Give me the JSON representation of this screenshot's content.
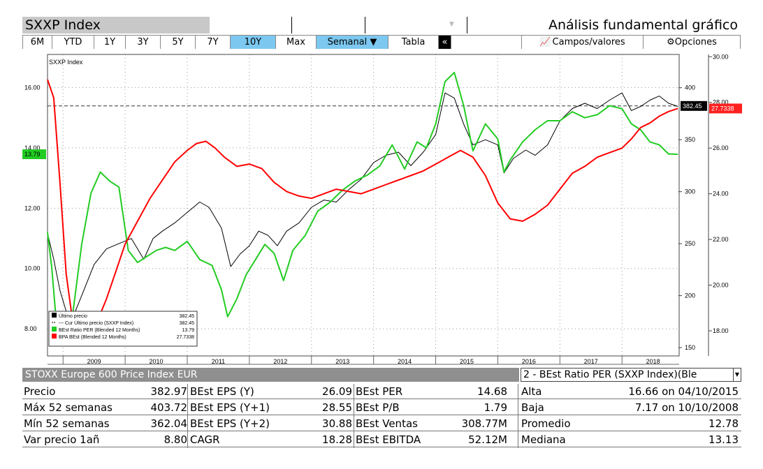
{
  "header": {
    "ticker": "SXXP Index",
    "title": "Análisis fundamental gráfico"
  },
  "toolbar": {
    "periods": [
      "6M",
      "YTD",
      "1Y",
      "3Y",
      "5Y",
      "7Y",
      "10Y",
      "Max"
    ],
    "selected_period": "10Y",
    "frequency": "Semanal ▼",
    "tabla": "Tabla",
    "collapse": "«",
    "campos": "Campos/valores",
    "opciones": "Opciones"
  },
  "chart_data": {
    "type": "line",
    "title": "SXXP Index",
    "x_labels": [
      "2009",
      "2010",
      "2011",
      "2012",
      "2013",
      "2014",
      "2015",
      "2016",
      "2017",
      "2018"
    ],
    "x_range": [
      2008.75,
      2018.92
    ],
    "left_axis": {
      "ticks": [
        "8.00",
        "10.00",
        "12.00",
        "14.00",
        "16.00"
      ],
      "range": [
        7.1,
        17.1
      ]
    },
    "mid_axis": {
      "ticks": [
        "150",
        "200",
        "250",
        "300",
        "350",
        "400"
      ],
      "range": [
        142,
        432
      ]
    },
    "right_axis": {
      "ticks": [
        "18.00",
        "20.00",
        "22.00",
        "24.00",
        "26.00",
        "28.00",
        "30.00"
      ],
      "range": [
        16.9,
        30.1
      ]
    },
    "reference_line": 382.45,
    "grid": true,
    "legend_position": "bottom-left",
    "legend": [
      {
        "label": "Último precio",
        "value": "382.45",
        "color": "#000000"
      },
      {
        "label": "--- Cur Último precio (SXXP Index)",
        "value": "382.45",
        "color": "#000000"
      },
      {
        "label": "BEst Ratio PER (Blended 12 Months)",
        "value": "13.79",
        "color": "#22cc22"
      },
      {
        "label": "BPA BEst (Blended 12 Months)",
        "value": "27.7338",
        "color": "#ff0000"
      }
    ],
    "value_tags": {
      "per": "13.79",
      "price": "382.45",
      "eps": "27.7338"
    },
    "series": [
      {
        "name": "Último precio",
        "axis": "mid",
        "color": "#000000",
        "x": [
          2008.75,
          2008.85,
          2008.95,
          2009.05,
          2009.15,
          2009.3,
          2009.5,
          2009.7,
          2009.9,
          2010.1,
          2010.3,
          2010.45,
          2010.6,
          2010.8,
          2011.0,
          2011.2,
          2011.35,
          2011.55,
          2011.7,
          2011.85,
          2012.0,
          2012.15,
          2012.3,
          2012.45,
          2012.6,
          2012.8,
          2013.0,
          2013.2,
          2013.4,
          2013.6,
          2013.8,
          2014.0,
          2014.2,
          2014.4,
          2014.6,
          2014.8,
          2015.0,
          2015.15,
          2015.3,
          2015.45,
          2015.6,
          2015.8,
          2016.0,
          2016.1,
          2016.25,
          2016.45,
          2016.6,
          2016.8,
          2017.0,
          2017.2,
          2017.4,
          2017.6,
          2017.8,
          2018.0,
          2018.15,
          2018.3,
          2018.45,
          2018.6,
          2018.75,
          2018.9
        ],
        "y": [
          260,
          235,
          205,
          185,
          178,
          200,
          230,
          245,
          250,
          255,
          235,
          255,
          262,
          270,
          280,
          290,
          285,
          265,
          228,
          240,
          248,
          262,
          258,
          248,
          262,
          270,
          285,
          292,
          290,
          302,
          312,
          328,
          335,
          338,
          325,
          338,
          355,
          395,
          390,
          365,
          345,
          350,
          345,
          318,
          332,
          340,
          335,
          345,
          368,
          380,
          385,
          380,
          388,
          395,
          378,
          382,
          388,
          392,
          385,
          382
        ]
      },
      {
        "name": "BEst Ratio PER (Blended 12 Months)",
        "axis": "left",
        "color": "#22cc22",
        "x": [
          2008.75,
          2008.82,
          2008.88,
          2008.95,
          2009.05,
          2009.15,
          2009.3,
          2009.45,
          2009.6,
          2009.75,
          2009.9,
          2010.05,
          2010.2,
          2010.35,
          2010.5,
          2010.65,
          2010.8,
          2011.0,
          2011.2,
          2011.4,
          2011.55,
          2011.65,
          2011.8,
          2011.95,
          2012.1,
          2012.25,
          2012.4,
          2012.55,
          2012.7,
          2012.9,
          2013.1,
          2013.3,
          2013.5,
          2013.7,
          2013.9,
          2014.1,
          2014.3,
          2014.5,
          2014.7,
          2014.85,
          2015.0,
          2015.15,
          2015.3,
          2015.45,
          2015.6,
          2015.8,
          2016.0,
          2016.1,
          2016.2,
          2016.4,
          2016.6,
          2016.8,
          2017.0,
          2017.2,
          2017.4,
          2017.6,
          2017.8,
          2018.0,
          2018.15,
          2018.3,
          2018.45,
          2018.6,
          2018.75,
          2018.9
        ],
        "y": [
          11.2,
          10.0,
          8.5,
          7.8,
          7.6,
          8.4,
          10.8,
          12.5,
          13.2,
          12.9,
          12.7,
          10.6,
          10.2,
          10.4,
          10.6,
          10.7,
          10.6,
          10.9,
          10.3,
          10.1,
          9.3,
          8.4,
          9.0,
          9.8,
          10.3,
          10.8,
          10.5,
          9.6,
          10.6,
          11.1,
          11.9,
          12.2,
          12.6,
          12.9,
          13.1,
          13.4,
          14.1,
          13.3,
          14.2,
          14.0,
          14.8,
          16.2,
          16.5,
          15.4,
          13.9,
          14.8,
          14.3,
          13.2,
          13.6,
          14.2,
          14.6,
          14.9,
          14.9,
          15.2,
          15.0,
          15.1,
          15.4,
          15.3,
          14.8,
          14.6,
          14.2,
          14.1,
          13.8,
          13.79
        ]
      },
      {
        "name": "BPA BEst (Blended 12 Months)",
        "axis": "right",
        "color": "#ff0000",
        "x": [
          2008.75,
          2008.85,
          2008.95,
          2009.05,
          2009.15,
          2009.25,
          2009.4,
          2009.55,
          2009.7,
          2009.85,
          2010.0,
          2010.2,
          2010.4,
          2010.6,
          2010.8,
          2011.0,
          2011.15,
          2011.3,
          2011.45,
          2011.6,
          2011.8,
          2012.0,
          2012.2,
          2012.4,
          2012.6,
          2012.8,
          2013.0,
          2013.2,
          2013.4,
          2013.6,
          2013.8,
          2014.0,
          2014.2,
          2014.4,
          2014.6,
          2014.8,
          2015.0,
          2015.2,
          2015.4,
          2015.6,
          2015.8,
          2016.0,
          2016.2,
          2016.4,
          2016.6,
          2016.8,
          2017.0,
          2017.2,
          2017.4,
          2017.6,
          2017.8,
          2018.0,
          2018.15,
          2018.3,
          2018.45,
          2018.6,
          2018.75,
          2018.9
        ],
        "y": [
          29.0,
          28.2,
          24.5,
          20.5,
          18.5,
          17.4,
          17.6,
          18.4,
          19.4,
          20.6,
          21.8,
          22.8,
          23.8,
          24.6,
          25.4,
          25.9,
          26.2,
          26.3,
          26.0,
          25.6,
          25.2,
          25.3,
          25.1,
          24.5,
          24.1,
          23.9,
          23.8,
          24.0,
          24.2,
          24.1,
          24.0,
          24.2,
          24.4,
          24.6,
          24.8,
          25.0,
          25.3,
          25.6,
          25.9,
          25.6,
          24.8,
          23.6,
          22.9,
          22.8,
          23.1,
          23.5,
          24.2,
          24.9,
          25.2,
          25.6,
          25.8,
          26.0,
          26.4,
          26.9,
          27.1,
          27.4,
          27.6,
          27.7338
        ]
      }
    ]
  },
  "info": {
    "title": "STOXX Europe 600 Price Index EUR",
    "selector": "2 - BEst Ratio PER (SXXP Index)(Ble",
    "rows": [
      {
        "c1": "Precio",
        "v1": "382.97",
        "c2": "BEst EPS (Y)",
        "v2": "26.09",
        "c3": "BEst PER",
        "v3": "14.68",
        "c4": "Alta",
        "v4": "16.66 on 04/10/2015"
      },
      {
        "c1": "Máx 52 semanas",
        "v1": "403.72",
        "c2": "BEst EPS (Y+1)",
        "v2": "28.55",
        "c3": "BEst P/B",
        "v3": "1.79",
        "c4": "Baja",
        "v4": "7.17 on 10/10/2008"
      },
      {
        "c1": "Mín 52 semanas",
        "v1": "362.04",
        "c2": "BEst EPS (Y+2)",
        "v2": "30.88",
        "c3": "BEst Ventas",
        "v3": "308.77M",
        "c4": "Promedio",
        "v4": "12.78"
      },
      {
        "c1": "Var precio 1añ",
        "v1": "8.80",
        "c2": "CAGR",
        "v2": "18.28",
        "c3": "BEst EBITDA",
        "v3": "52.12M",
        "c4": "Mediana",
        "v4": "13.13"
      }
    ]
  }
}
